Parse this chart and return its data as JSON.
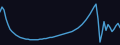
{
  "background_color": "#0d0d1a",
  "line_color": "#4a9fd4",
  "line_width": 1.0,
  "y_values": [
    72,
    80,
    75,
    60,
    50,
    42,
    38,
    35,
    32,
    30,
    28,
    27,
    26,
    25,
    25,
    24,
    24,
    24,
    24,
    24,
    25,
    25,
    26,
    26,
    27,
    28,
    28,
    29,
    30,
    31,
    32,
    33,
    34,
    35,
    36,
    37,
    38,
    40,
    42,
    44,
    47,
    50,
    54,
    58,
    63,
    68,
    74,
    80,
    85,
    60,
    20,
    35,
    55,
    40,
    50,
    45,
    38,
    42,
    48,
    52,
    45
  ],
  "xlim": [
    0,
    60
  ],
  "ylim": [
    15,
    92
  ]
}
